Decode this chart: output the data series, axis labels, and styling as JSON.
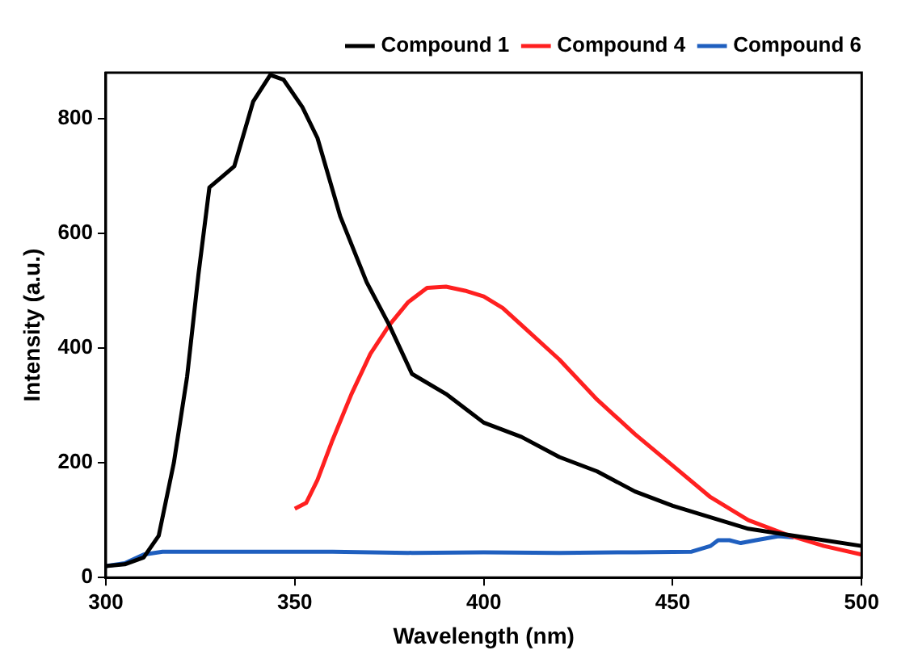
{
  "chart_data": {
    "type": "line",
    "xlabel": "Wavelength (nm)",
    "ylabel": "Intensity (a.u.)",
    "xlim": [
      300,
      500
    ],
    "xticks": [
      300,
      350,
      400,
      450,
      500
    ],
    "ylim": [
      0,
      880
    ],
    "yticks": [
      0,
      200,
      400,
      600,
      800
    ],
    "grid": false,
    "legend": "top right",
    "marker": "none",
    "line_style": "solid",
    "series": [
      {
        "name": "Compound 1",
        "color": "#000000",
        "x": [
          300,
          305,
          310,
          314,
          318,
          321.5,
          324.5,
          327.4,
          331,
          334,
          339,
          343.5,
          347,
          352,
          356,
          362,
          369,
          375,
          381,
          390,
          400,
          410,
          420,
          430,
          440,
          450,
          460,
          470,
          480,
          490,
          500
        ],
        "values": [
          20,
          23,
          35,
          73,
          200,
          350,
          528,
          680,
          700,
          717,
          830,
          876,
          868,
          820,
          766,
          630,
          515,
          440,
          355,
          320,
          270,
          245,
          210,
          185,
          150,
          125,
          105,
          85,
          75,
          65,
          55
        ]
      },
      {
        "name": "Compound 4",
        "color": "#ff2020",
        "x": [
          350,
          353,
          356,
          360,
          365,
          370,
          375,
          380,
          385,
          390,
          395,
          400,
          405,
          410,
          420,
          430,
          440,
          450,
          460,
          470,
          480,
          490,
          500
        ],
        "values": [
          120,
          130,
          170,
          240,
          320,
          390,
          440,
          480,
          505,
          507,
          500,
          490,
          470,
          440,
          380,
          310,
          250,
          195,
          140,
          100,
          75,
          55,
          40
        ]
      },
      {
        "name": "Compound 6",
        "color": "#1f5fbf",
        "x": [
          300,
          305,
          310,
          315,
          320,
          340,
          360,
          380,
          400,
          420,
          440,
          455,
          460,
          462,
          465,
          468,
          472,
          478,
          482
        ],
        "values": [
          20,
          25,
          40,
          45,
          45,
          45,
          45,
          43,
          44,
          43,
          44,
          45,
          55,
          65,
          65,
          60,
          65,
          72,
          70
        ]
      }
    ]
  }
}
